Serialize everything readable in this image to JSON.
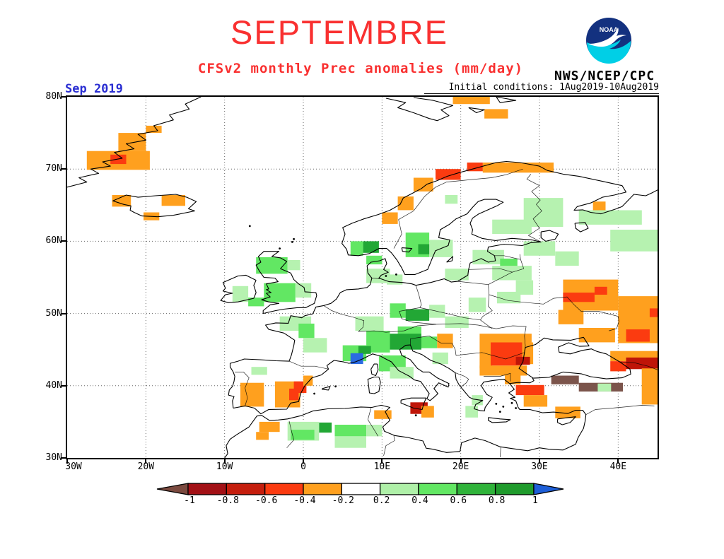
{
  "header": {
    "title": "SEPTEMBRE",
    "subtitle": "CFSv2 monthly Prec anomalies (mm/day)",
    "agency": "NWS/NCEP/CPC",
    "date_label": "Sep 2019",
    "init_label": "Initial conditions: 1Aug2019-10Aug2019",
    "title_color": "#f93030",
    "date_color": "#2a2ed2"
  },
  "logo": {
    "name": "noaa-logo",
    "text": "NOAA",
    "top_color": "#13317f",
    "bottom_color": "#00cfe6"
  },
  "map": {
    "lat_labels": [
      "80N",
      "70N",
      "60N",
      "50N",
      "40N",
      "30N"
    ],
    "lon_labels": [
      "30W",
      "20W",
      "10W",
      "0",
      "10E",
      "20E",
      "30E",
      "40E"
    ]
  },
  "chart_data": {
    "type": "heatmap",
    "title": "SEPTEMBRE",
    "subtitle": "CFSv2 monthly Prec anomalies (mm/day)",
    "units": "mm/day",
    "region": {
      "lon_min": -30,
      "lon_max": 45,
      "lat_min": 30,
      "lat_max": 80
    },
    "grid": "dotted graticule every 10 degrees",
    "colorbar": {
      "labels": [
        "-1",
        "-0.8",
        "-0.6",
        "-0.4",
        "-0.2",
        "0.2",
        "0.4",
        "0.6",
        "0.8",
        "1"
      ],
      "segment_colors": [
        "#a31116",
        "#c51e0d",
        "#fb3b10",
        "#ffa01e",
        "#ffffff",
        "#aff0a8",
        "#62e763",
        "#2fb33a",
        "#1f9b2c"
      ],
      "arrow_left_color": "#7b4a3f",
      "arrow_right_color": "#1e5fd8"
    },
    "classes": {
      "br": {
        "range": "< -1",
        "color": "#7b544b"
      },
      "dr": {
        "range": "-1 to -0.6",
        "color": "#bf1508"
      },
      "r": {
        "range": "-0.6 to -0.4",
        "color": "#fb3b10"
      },
      "o": {
        "range": "-0.4 to -0.2",
        "color": "#ffa01e"
      },
      "lg": {
        "range": "0.2 to 0.4",
        "color": "#b6f2b0"
      },
      "bg": {
        "range": "0.4 to 0.6",
        "color": "#62e763"
      },
      "dg": {
        "range": "0.6 to 1",
        "color": "#22a735"
      },
      "bl": {
        "range": "> 1",
        "color": "#2a6be2"
      }
    },
    "cells": [
      [
        -20,
        76,
        2,
        1,
        "o"
      ],
      [
        -23.5,
        75,
        3.5,
        2.5,
        "o"
      ],
      [
        -27.5,
        72.5,
        8,
        2.6,
        "o"
      ],
      [
        -24.5,
        72,
        2,
        1.3,
        "r"
      ],
      [
        -24.3,
        66.4,
        2.4,
        1.6,
        "o"
      ],
      [
        -18,
        66.4,
        3,
        1.5,
        "o"
      ],
      [
        -20.3,
        64,
        2,
        1.1,
        "o"
      ],
      [
        19,
        80,
        4.7,
        1,
        "o"
      ],
      [
        23,
        78.3,
        3,
        1.3,
        "o"
      ],
      [
        10,
        64,
        2,
        1.6,
        "o"
      ],
      [
        12,
        66.2,
        2,
        1.9,
        "o"
      ],
      [
        14,
        68.8,
        2.5,
        1.9,
        "o"
      ],
      [
        16.8,
        70,
        3.2,
        1.5,
        "r"
      ],
      [
        20.8,
        70.9,
        2,
        1.2,
        "r"
      ],
      [
        22.8,
        70.9,
        9,
        1.4,
        "o"
      ],
      [
        18,
        66.4,
        1.6,
        1.2,
        "lg"
      ],
      [
        28,
        66,
        5,
        4,
        "lg"
      ],
      [
        35,
        64.3,
        8,
        2,
        "lg"
      ],
      [
        39,
        61.6,
        6,
        3,
        "lg"
      ],
      [
        28,
        60,
        4,
        2,
        "lg"
      ],
      [
        32,
        58.6,
        3,
        2,
        "lg"
      ],
      [
        36.8,
        65.5,
        1.6,
        1.2,
        "o"
      ],
      [
        24,
        63,
        5,
        2,
        "lg"
      ],
      [
        13,
        61.2,
        3,
        3.4,
        "bg"
      ],
      [
        14.6,
        59.6,
        1.6,
        1.4,
        "dg"
      ],
      [
        16,
        60.2,
        3,
        2.4,
        "lg"
      ],
      [
        21.5,
        58.8,
        4,
        2,
        "lg"
      ],
      [
        25,
        57.6,
        2.2,
        1.2,
        "bg"
      ],
      [
        24,
        56.6,
        5,
        2,
        "lg"
      ],
      [
        27,
        54.6,
        2.2,
        2,
        "lg"
      ],
      [
        18,
        56.2,
        3,
        1.6,
        "lg"
      ],
      [
        21,
        52.2,
        2.2,
        2,
        "lg"
      ],
      [
        24.6,
        53,
        3,
        1.6,
        "lg"
      ],
      [
        6,
        60,
        1.6,
        2,
        "bg"
      ],
      [
        7.6,
        60,
        2,
        1.6,
        "dg"
      ],
      [
        8,
        58,
        2,
        1.2,
        "bg"
      ],
      [
        8,
        56.2,
        3,
        2,
        "lg"
      ],
      [
        10.6,
        55.4,
        2,
        1.4,
        "lg"
      ],
      [
        -6,
        57.8,
        4,
        2.3,
        "bg"
      ],
      [
        -2,
        57.4,
        1.6,
        1.4,
        "lg"
      ],
      [
        -5,
        54.2,
        4,
        2.6,
        "bg"
      ],
      [
        -1,
        54.2,
        2,
        2,
        "lg"
      ],
      [
        -9,
        53.8,
        2,
        2.2,
        "lg"
      ],
      [
        -7,
        52.2,
        2,
        1.2,
        "bg"
      ],
      [
        -3,
        49.6,
        4,
        2,
        "lg"
      ],
      [
        -0.6,
        48.6,
        2,
        2,
        "bg"
      ],
      [
        0,
        46.6,
        3,
        2,
        "lg"
      ],
      [
        6.6,
        49.6,
        3.6,
        2,
        "lg"
      ],
      [
        11,
        51.4,
        2,
        2,
        "bg"
      ],
      [
        13,
        50.6,
        3,
        1.6,
        "dg"
      ],
      [
        16,
        51.2,
        2,
        1.8,
        "lg"
      ],
      [
        18,
        49.6,
        3,
        1.6,
        "lg"
      ],
      [
        12,
        48.2,
        3,
        1.6,
        "bg"
      ],
      [
        8,
        47.6,
        3,
        3,
        "bg"
      ],
      [
        11,
        47.2,
        4,
        2.2,
        "dg"
      ],
      [
        15,
        46.8,
        2,
        1.6,
        "bg"
      ],
      [
        5,
        45.6,
        3,
        2.2,
        "bg"
      ],
      [
        7,
        45.5,
        1.6,
        1.1,
        "dg"
      ],
      [
        6,
        44.5,
        1.6,
        1.5,
        "bl"
      ],
      [
        9.6,
        44.2,
        3.4,
        2.2,
        "bg"
      ],
      [
        11,
        42.6,
        3,
        1.6,
        "lg"
      ],
      [
        16.4,
        44.6,
        2,
        1.6,
        "lg"
      ],
      [
        17,
        47.2,
        2,
        2,
        "o"
      ],
      [
        13.6,
        37.7,
        2.2,
        1.6,
        "dr"
      ],
      [
        9,
        36.6,
        2.2,
        1.2,
        "o"
      ],
      [
        15,
        37.2,
        1.6,
        1.6,
        "o"
      ],
      [
        21.4,
        38.7,
        1.4,
        1.4,
        "lg"
      ],
      [
        20.6,
        37.2,
        1.6,
        1.6,
        "lg"
      ],
      [
        -6.6,
        42.6,
        2,
        1.1,
        "lg"
      ],
      [
        -8,
        40.4,
        3,
        3.3,
        "o"
      ],
      [
        -3.6,
        40.6,
        3.2,
        3.6,
        "o"
      ],
      [
        -1.2,
        40.6,
        1.6,
        1.6,
        "r"
      ],
      [
        -1.8,
        39.6,
        1.2,
        1.6,
        "r"
      ],
      [
        0,
        41.4,
        1.2,
        1.4,
        "o"
      ],
      [
        -5.6,
        35,
        2.6,
        1.4,
        "o"
      ],
      [
        -6,
        33.6,
        1.6,
        1.1,
        "o"
      ],
      [
        -2,
        35,
        4,
        2.6,
        "lg"
      ],
      [
        -1.6,
        33.9,
        3,
        1.4,
        "bg"
      ],
      [
        2,
        34.9,
        1.6,
        1.4,
        "dg"
      ],
      [
        4,
        34.6,
        4,
        1.6,
        "bg"
      ],
      [
        4,
        33,
        4,
        1.6,
        "lg"
      ],
      [
        8,
        34.6,
        2,
        1.6,
        "lg"
      ],
      [
        22.4,
        47.2,
        6.6,
        1.2,
        "o"
      ],
      [
        22.4,
        46,
        1.6,
        3.6,
        "o"
      ],
      [
        27.6,
        46,
        1.6,
        3,
        "o"
      ],
      [
        22.4,
        42.8,
        6,
        1.4,
        "o"
      ],
      [
        23.8,
        46,
        4,
        3.2,
        "r"
      ],
      [
        27,
        44,
        1.8,
        1.1,
        "dr"
      ],
      [
        32.4,
        50.5,
        3.2,
        2,
        "o"
      ],
      [
        33,
        54.7,
        7,
        4.3,
        "o"
      ],
      [
        37,
        53.7,
        1.6,
        1.1,
        "r"
      ],
      [
        33,
        52.9,
        4,
        1.3,
        "r"
      ],
      [
        40,
        52.4,
        5,
        6.5,
        "o"
      ],
      [
        41,
        47.8,
        3,
        1.7,
        "r"
      ],
      [
        44,
        50.7,
        1,
        1.2,
        "r"
      ],
      [
        35,
        48,
        4.6,
        2,
        "o"
      ],
      [
        39,
        44.8,
        6,
        1.4,
        "o"
      ],
      [
        25.6,
        41.6,
        2,
        1.4,
        "o"
      ],
      [
        27,
        40.1,
        3.6,
        1.4,
        "r"
      ],
      [
        28,
        38.7,
        3,
        1.6,
        "o"
      ],
      [
        31.5,
        41.4,
        3.5,
        1.2,
        "br"
      ],
      [
        35,
        40.4,
        5.6,
        1.2,
        "br"
      ],
      [
        41,
        43.9,
        4,
        1.6,
        "dr"
      ],
      [
        39,
        43.4,
        2,
        1.4,
        "r"
      ],
      [
        32,
        37.1,
        3.2,
        1.6,
        "o"
      ],
      [
        43,
        42.4,
        2,
        5,
        "o"
      ],
      [
        37.4,
        40.3,
        1.7,
        1.1,
        "lg"
      ]
    ]
  }
}
